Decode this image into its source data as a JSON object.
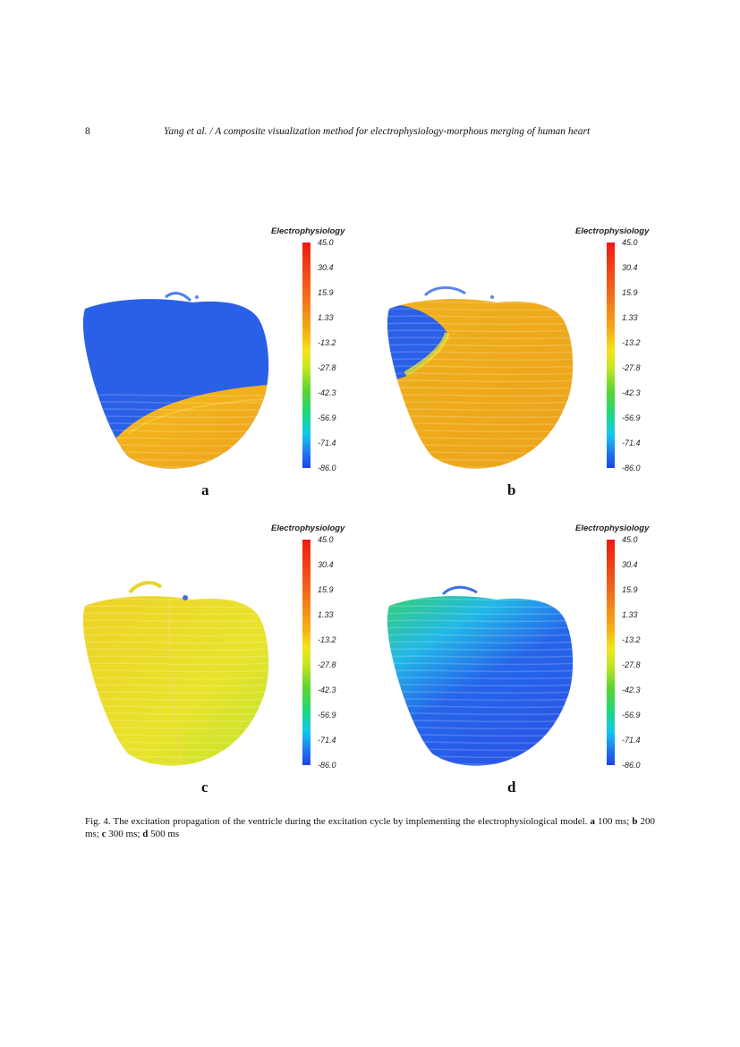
{
  "header": {
    "page_number": "8",
    "running_head": "Yang et al.  / A composite visualization method for electrophysiology-morphous merging of human heart"
  },
  "legend": {
    "title": "Electrophysiology",
    "ticks": [
      "45.0",
      "30.4",
      "15.9",
      "1.33",
      "-13.2",
      "-27.8",
      "-42.3",
      "-56.9",
      "-71.4",
      "-86.0"
    ]
  },
  "panels": [
    {
      "label": "a",
      "time": "100 ms"
    },
    {
      "label": "b",
      "time": "200 ms"
    },
    {
      "label": "c",
      "time": "300 ms"
    },
    {
      "label": "d",
      "time": "500 ms"
    }
  ],
  "caption": {
    "text": "Fig. 4. The excitation propagation of the ventricle during the excitation cycle by implementing the electrophysiological model.",
    "items": [
      {
        "label": "a",
        "value": "100 ms;"
      },
      {
        "label": "b",
        "value": "200 ms;"
      },
      {
        "label": "c",
        "value": "300 ms;"
      },
      {
        "label": "d",
        "value": "500 ms"
      }
    ]
  },
  "colors": {
    "depolarized_orange": "#f2a818",
    "activated_yellow": "#e9e02a",
    "resting_blue": "#2a5fe8",
    "intermediate_green": "#3ed84b"
  }
}
